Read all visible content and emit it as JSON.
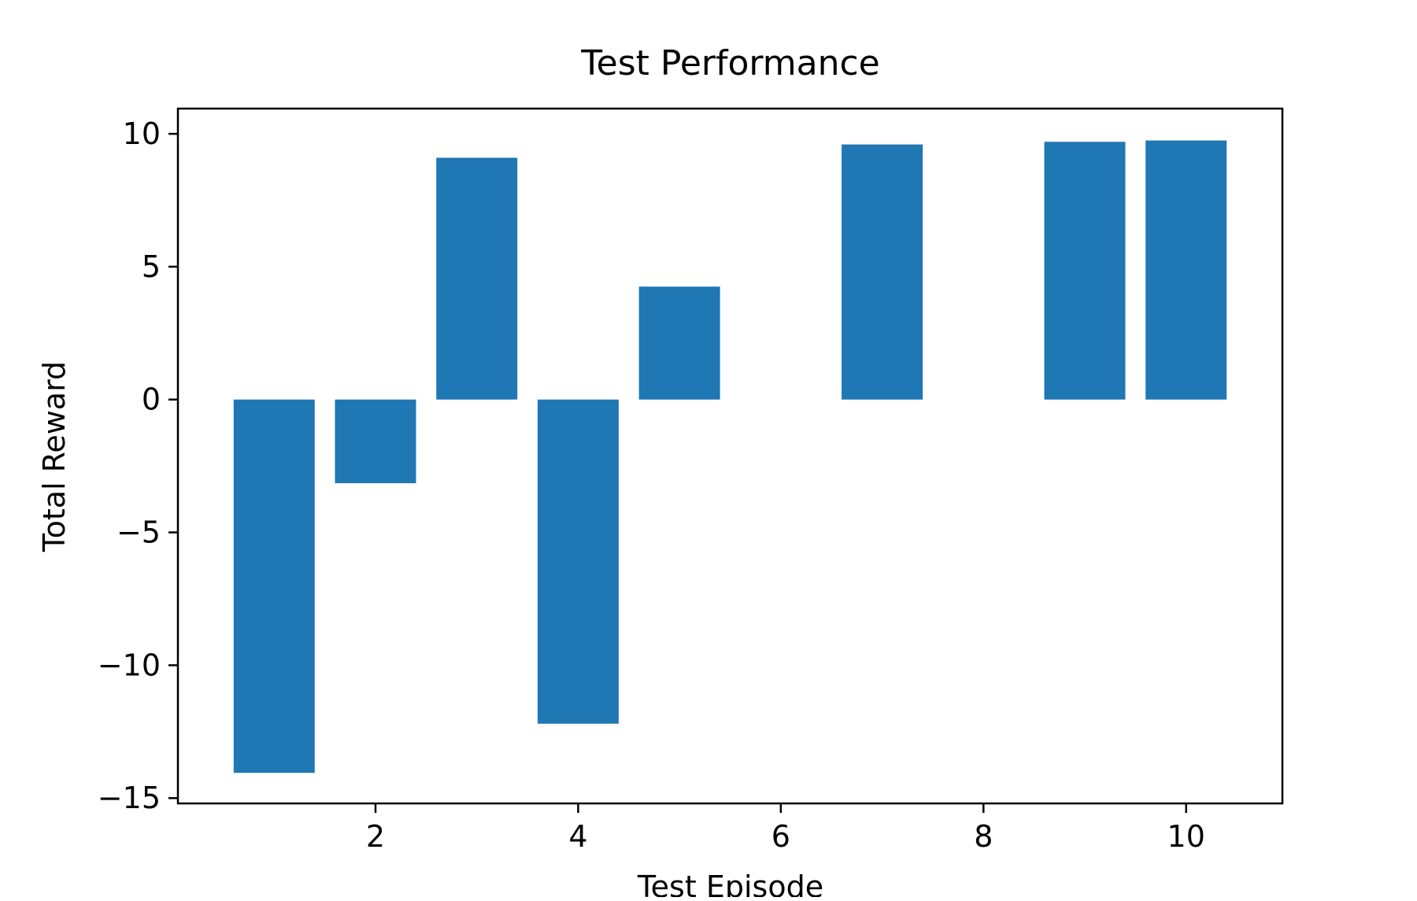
{
  "chart_data": {
    "type": "bar",
    "title": "Test Performance",
    "xlabel": "Test Episode",
    "ylabel": "Total Reward",
    "x": [
      1,
      2,
      3,
      4,
      5,
      6,
      7,
      8,
      9,
      10
    ],
    "values": [
      -14.05,
      -3.15,
      9.1,
      -12.2,
      4.25,
      0,
      9.6,
      0,
      9.7,
      9.75
    ],
    "bar_width": 0.8,
    "xlim": [
      0.05,
      10.95
    ],
    "ylim": [
      -15.2,
      10.95
    ],
    "xticks": [
      2,
      4,
      6,
      8,
      10
    ],
    "xtick_labels": [
      "2",
      "4",
      "6",
      "8",
      "10"
    ],
    "yticks": [
      -15,
      -10,
      -5,
      0,
      5,
      10
    ],
    "ytick_labels": [
      "−15",
      "−10",
      "−5",
      "0",
      "5",
      "10"
    ],
    "grid": false,
    "legend": false,
    "bar_color": "#1f77b4"
  }
}
